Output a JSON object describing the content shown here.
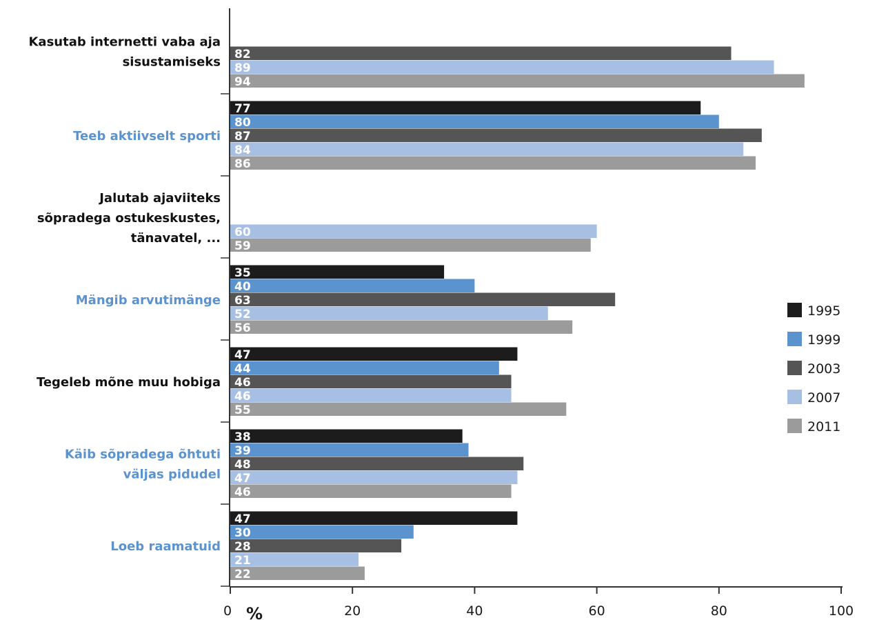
{
  "chart_data": {
    "type": "bar",
    "orientation": "horizontal",
    "xlim": [
      0,
      100
    ],
    "xticks": [
      "0",
      "20",
      "40",
      "60",
      "80",
      "100"
    ],
    "unit": "%",
    "categories": [
      [
        "Kasutab internetti vaba aja",
        "sisustamiseks"
      ],
      [
        "Teeb aktiivselt sporti"
      ],
      [
        "Jalutab ajaviiteks",
        "sõpradega ostukeskustes,",
        "tänavatel, ..."
      ],
      [
        "Mängib arvutimänge"
      ],
      [
        "Tegeleb mõne muu hobiga"
      ],
      [
        "Käib sõpradega õhtuti",
        "väljas pidudel"
      ],
      [
        "Loeb raamatuid"
      ]
    ],
    "category_colors": [
      "#111111",
      "#5b93cf",
      "#111111",
      "#5b93cf",
      "#111111",
      "#5b93cf",
      "#5b93cf"
    ],
    "series": [
      {
        "name": "1995",
        "color": "#1c1c1c",
        "values": [
          null,
          77,
          null,
          35,
          47,
          38,
          47
        ]
      },
      {
        "name": "1999",
        "color": "#5b93cf",
        "values": [
          null,
          80,
          null,
          40,
          44,
          39,
          30
        ]
      },
      {
        "name": "2003",
        "color": "#555555",
        "values": [
          82,
          87,
          null,
          63,
          46,
          48,
          28
        ]
      },
      {
        "name": "2007",
        "color": "#a8bfe4",
        "values": [
          89,
          84,
          60,
          52,
          46,
          47,
          21
        ]
      },
      {
        "name": "2011",
        "color": "#9b9b9b",
        "values": [
          94,
          86,
          59,
          56,
          55,
          46,
          22
        ]
      }
    ],
    "legend_position": "right",
    "grid": false
  }
}
